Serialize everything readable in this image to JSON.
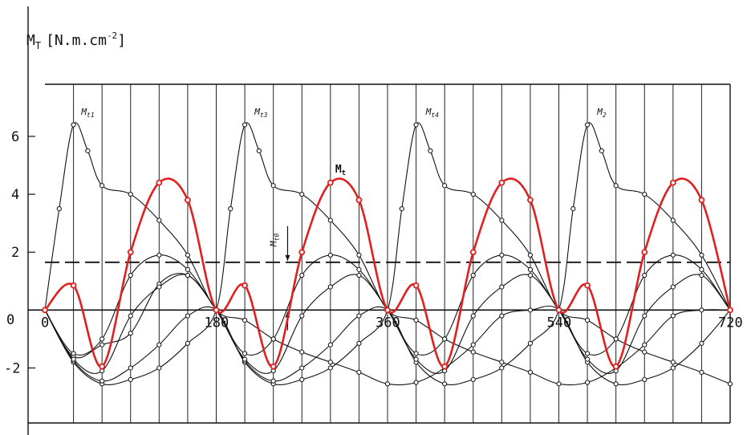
{
  "chart_data": {
    "type": "line",
    "title": "",
    "ylabel_main": "M",
    "ylabel_sub": "T",
    "ylabel_unit": "[N.m.cm",
    "ylabel_sup": "-2",
    "ylabel_close": "]",
    "origin_label": "0",
    "xlim": [
      0,
      720
    ],
    "ylim": [
      -3.9,
      7.8
    ],
    "x_tick_labels": [
      {
        "x": 0,
        "label": "0"
      },
      {
        "x": 180,
        "label": "180"
      },
      {
        "x": 360,
        "label": "360"
      },
      {
        "x": 540,
        "label": "540"
      },
      {
        "x": 720,
        "label": "720"
      }
    ],
    "y_tick_labels": [
      {
        "y": 6,
        "label": "6"
      },
      {
        "y": 4,
        "label": "4"
      },
      {
        "y": 2,
        "label": "2"
      },
      {
        "y": -2,
        "label": "-2"
      }
    ],
    "vertical_grid_step": 30,
    "mean_line": {
      "label": "Mt0",
      "label_main": "M",
      "label_sub": "t0",
      "y": 1.65
    },
    "total_curve": {
      "label_main": "M",
      "label_sub": "t",
      "color": "#e02020",
      "points": [
        [
          0,
          0
        ],
        [
          30,
          0.85
        ],
        [
          60,
          -1.95
        ],
        [
          90,
          2.0
        ],
        [
          120,
          4.4
        ],
        [
          150,
          3.8
        ],
        [
          180,
          0
        ],
        [
          210,
          0.85
        ],
        [
          240,
          -1.95
        ],
        [
          270,
          2.0
        ],
        [
          300,
          4.4
        ],
        [
          330,
          3.8
        ],
        [
          360,
          0
        ],
        [
          390,
          0.85
        ],
        [
          420,
          -1.95
        ],
        [
          450,
          2.0
        ],
        [
          480,
          4.4
        ],
        [
          510,
          3.8
        ],
        [
          540,
          0
        ],
        [
          570,
          0.85
        ],
        [
          600,
          -1.95
        ],
        [
          630,
          2.0
        ],
        [
          660,
          4.4
        ],
        [
          690,
          3.8
        ],
        [
          720,
          0
        ]
      ]
    },
    "cylinder_curves": [
      {
        "label_main": "M",
        "label_sub": "t1",
        "label_x": 45,
        "peak_x": 30,
        "points": [
          [
            0,
            0
          ],
          [
            15,
            3.5
          ],
          [
            30,
            6.4
          ],
          [
            45,
            5.5
          ],
          [
            60,
            4.3
          ],
          [
            90,
            4.0
          ],
          [
            120,
            3.1
          ],
          [
            150,
            1.9
          ],
          [
            180,
            0
          ],
          [
            210,
            -0.35
          ],
          [
            240,
            -1.0
          ],
          [
            270,
            -1.45
          ],
          [
            300,
            -1.8
          ],
          [
            330,
            -2.15
          ],
          [
            360,
            -2.55
          ],
          [
            390,
            -2.5
          ],
          [
            420,
            -2.0
          ],
          [
            450,
            -1.2
          ],
          [
            480,
            -0.2
          ],
          [
            510,
            0
          ],
          [
            540,
            0
          ],
          [
            570,
            -1.8
          ],
          [
            600,
            -2.55
          ],
          [
            630,
            -2.4
          ],
          [
            660,
            -2.0
          ],
          [
            690,
            -1.15
          ],
          [
            720,
            0
          ]
        ]
      },
      {
        "label_main": "M",
        "label_sub": "t3",
        "label_x": 227,
        "peak_x": 210,
        "points": [
          [
            0,
            0
          ],
          [
            30,
            -1.8
          ],
          [
            60,
            -2.55
          ],
          [
            90,
            -2.4
          ],
          [
            120,
            -2.0
          ],
          [
            150,
            -1.15
          ],
          [
            180,
            0
          ],
          [
            195,
            3.5
          ],
          [
            210,
            6.4
          ],
          [
            225,
            5.5
          ],
          [
            240,
            4.3
          ],
          [
            270,
            4.0
          ],
          [
            300,
            3.1
          ],
          [
            330,
            1.9
          ],
          [
            360,
            0
          ],
          [
            390,
            -0.35
          ],
          [
            420,
            -1.0
          ],
          [
            450,
            -1.45
          ],
          [
            480,
            -1.8
          ],
          [
            510,
            -2.15
          ],
          [
            540,
            -2.55
          ],
          [
            570,
            -2.5
          ],
          [
            600,
            -2.0
          ],
          [
            630,
            -1.2
          ],
          [
            660,
            -0.2
          ],
          [
            690,
            0
          ],
          [
            720,
            0
          ]
        ]
      },
      {
        "label_main": "M",
        "label_sub": "t4",
        "label_x": 407,
        "peak_x": 390,
        "points": [
          [
            0,
            0
          ],
          [
            30,
            -1.75
          ],
          [
            60,
            -2.45
          ],
          [
            90,
            -2.0
          ],
          [
            120,
            -1.2
          ],
          [
            150,
            -0.2
          ],
          [
            180,
            0
          ],
          [
            210,
            -1.8
          ],
          [
            240,
            -2.55
          ],
          [
            270,
            -2.4
          ],
          [
            300,
            -2.0
          ],
          [
            330,
            -1.15
          ],
          [
            360,
            0
          ],
          [
            375,
            3.5
          ],
          [
            390,
            6.4
          ],
          [
            405,
            5.5
          ],
          [
            420,
            4.3
          ],
          [
            450,
            4.0
          ],
          [
            480,
            3.1
          ],
          [
            510,
            1.9
          ],
          [
            540,
            0
          ],
          [
            570,
            -0.35
          ],
          [
            600,
            -1.0
          ],
          [
            630,
            -1.45
          ],
          [
            660,
            -1.8
          ],
          [
            690,
            -2.15
          ],
          [
            720,
            -2.55
          ]
        ]
      },
      {
        "label_main": "M",
        "label_sub": "2",
        "label_x": 587,
        "peak_x": 570,
        "points": [
          [
            0,
            0
          ],
          [
            30,
            -1.6
          ],
          [
            60,
            -1.2
          ],
          [
            90,
            -0.8
          ],
          [
            120,
            0.9
          ],
          [
            150,
            1.2
          ],
          [
            180,
            0
          ],
          [
            210,
            -1.75
          ],
          [
            240,
            -2.45
          ],
          [
            270,
            -2.0
          ],
          [
            300,
            -1.2
          ],
          [
            330,
            -0.2
          ],
          [
            360,
            0
          ],
          [
            390,
            -1.8
          ],
          [
            420,
            -2.55
          ],
          [
            450,
            -2.4
          ],
          [
            480,
            -2.0
          ],
          [
            510,
            -1.15
          ],
          [
            540,
            0
          ],
          [
            555,
            3.5
          ],
          [
            570,
            6.4
          ],
          [
            585,
            5.5
          ],
          [
            600,
            4.3
          ],
          [
            630,
            4.0
          ],
          [
            660,
            3.1
          ],
          [
            690,
            1.9
          ],
          [
            720,
            0
          ]
        ]
      },
      {
        "points": [
          [
            0,
            0
          ],
          [
            30,
            -1.5
          ],
          [
            60,
            -1.0
          ],
          [
            90,
            1.2
          ],
          [
            120,
            1.9
          ],
          [
            150,
            1.4
          ],
          [
            180,
            0
          ],
          [
            210,
            -1.5
          ],
          [
            240,
            -1.0
          ],
          [
            270,
            1.2
          ],
          [
            300,
            1.9
          ],
          [
            330,
            1.4
          ],
          [
            360,
            0
          ],
          [
            390,
            -1.5
          ],
          [
            420,
            -1.0
          ],
          [
            450,
            1.2
          ],
          [
            480,
            1.9
          ],
          [
            510,
            1.4
          ],
          [
            540,
            0
          ],
          [
            570,
            -1.5
          ],
          [
            600,
            -1.0
          ],
          [
            630,
            1.2
          ],
          [
            660,
            1.9
          ],
          [
            690,
            1.4
          ],
          [
            720,
            0
          ]
        ]
      },
      {
        "points": [
          [
            0,
            0
          ],
          [
            30,
            -1.7
          ],
          [
            60,
            -2.1
          ],
          [
            90,
            -0.2
          ],
          [
            120,
            0.8
          ],
          [
            150,
            1.2
          ],
          [
            180,
            0
          ],
          [
            210,
            -1.7
          ],
          [
            240,
            -2.1
          ],
          [
            270,
            -0.2
          ],
          [
            300,
            0.8
          ],
          [
            330,
            1.2
          ],
          [
            360,
            0
          ],
          [
            390,
            -1.7
          ],
          [
            420,
            -2.1
          ],
          [
            450,
            -0.2
          ],
          [
            480,
            0.8
          ],
          [
            510,
            1.2
          ],
          [
            540,
            0
          ],
          [
            570,
            -1.7
          ],
          [
            600,
            -2.1
          ],
          [
            630,
            -0.2
          ],
          [
            660,
            0.8
          ],
          [
            690,
            1.2
          ],
          [
            720,
            0
          ]
        ]
      }
    ]
  }
}
